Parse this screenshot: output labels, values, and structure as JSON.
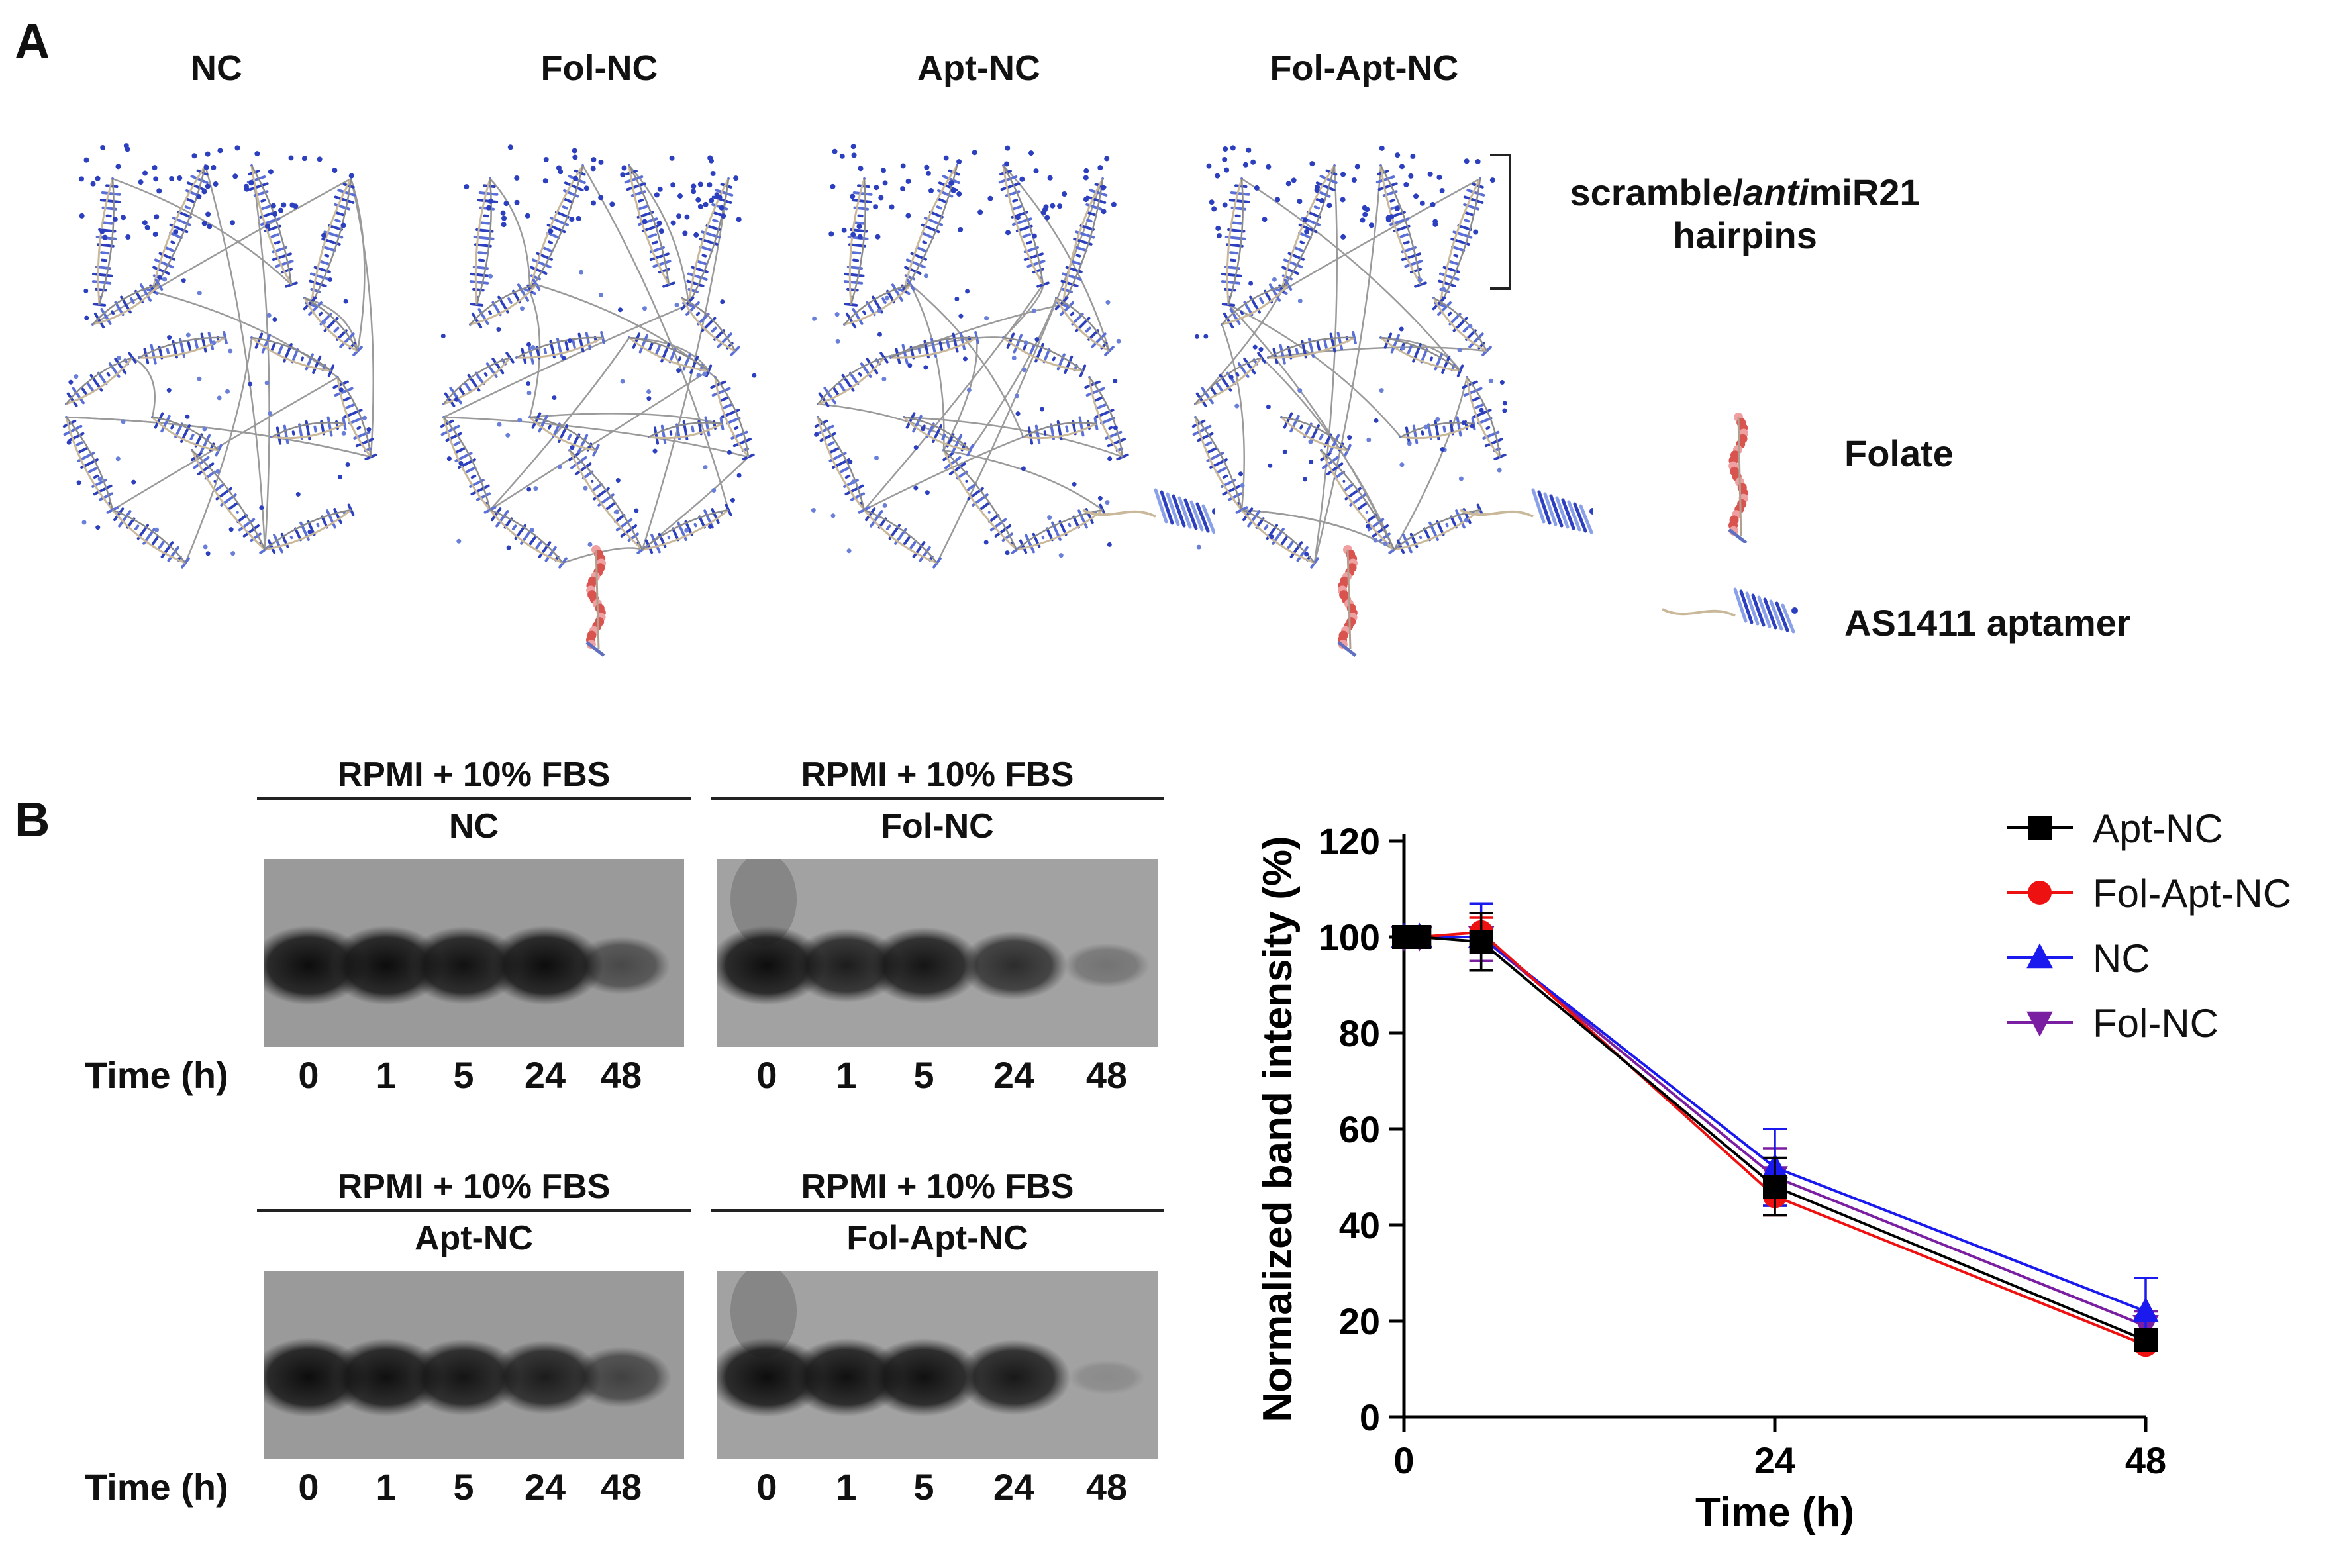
{
  "panel_a": {
    "letter": "A",
    "structures": [
      {
        "title": "NC",
        "folate": false,
        "aptamer": false
      },
      {
        "title": "Fol-NC",
        "folate": true,
        "aptamer": false
      },
      {
        "title": "Apt-NC",
        "folate": false,
        "aptamer": true
      },
      {
        "title": "Fol-Apt-NC",
        "folate": true,
        "aptamer": true
      }
    ],
    "hairpin_label_part1": "scramble/",
    "hairpin_label_italic": "anti",
    "hairpin_label_part2": "miR21",
    "hairpin_label_line2": "hairpins",
    "legend_folate": "Folate",
    "legend_aptamer": "AS1411 aptamer",
    "colors": {
      "dna_blue": "#2b3fbf",
      "backbone": "#c9b99a",
      "folate_red": "#d9534f"
    }
  },
  "panel_b": {
    "letter": "B",
    "gels": [
      {
        "header": "RPMI + 10% FBS",
        "sample": "NC",
        "time_label": "Time (h)",
        "lanes": [
          "0",
          "1",
          "5",
          "24",
          "48"
        ],
        "band_intensity": [
          0.95,
          0.95,
          0.92,
          0.95,
          0.55
        ]
      },
      {
        "header": "RPMI + 10% FBS",
        "sample": "Fol-NC",
        "time_label": "",
        "lanes": [
          "0",
          "1",
          "5",
          "24",
          "48"
        ],
        "band_intensity": [
          0.95,
          0.85,
          0.9,
          0.75,
          0.3
        ]
      },
      {
        "header": "RPMI + 10% FBS",
        "sample": "Apt-NC",
        "time_label": "Time (h)",
        "lanes": [
          "0",
          "1",
          "5",
          "24",
          "48"
        ],
        "band_intensity": [
          0.95,
          0.93,
          0.9,
          0.85,
          0.6
        ]
      },
      {
        "header": "RPMI + 10% FBS",
        "sample": "Fol-Apt-NC",
        "time_label": "",
        "lanes": [
          "0",
          "1",
          "5",
          "24",
          "48"
        ],
        "band_intensity": [
          0.95,
          0.93,
          0.93,
          0.88,
          0.1
        ]
      }
    ]
  },
  "chart_data": {
    "type": "line",
    "xlabel": "Time (h)",
    "ylabel": "Normalized band intensity (%)",
    "xlim": [
      0,
      48
    ],
    "ylim": [
      0,
      120
    ],
    "xticks": [
      "0",
      "24",
      "48"
    ],
    "yticks": [
      "0",
      "20",
      "40",
      "60",
      "80",
      "100",
      "120"
    ],
    "grid": false,
    "legend_placement": "top-right",
    "series": [
      {
        "name": "Apt-NC",
        "color": "#000000",
        "marker": "square",
        "x": [
          0,
          1,
          5,
          24,
          48
        ],
        "y": [
          100,
          100,
          99,
          48,
          16
        ],
        "err": [
          0,
          0,
          6,
          6,
          2
        ]
      },
      {
        "name": "Fol-Apt-NC",
        "color": "#ee1111",
        "marker": "circle",
        "x": [
          0,
          1,
          5,
          24,
          48
        ],
        "y": [
          100,
          100,
          101,
          46,
          15
        ],
        "err": [
          0,
          0,
          3,
          4,
          1
        ]
      },
      {
        "name": "NC",
        "color": "#1a1aee",
        "marker": "triangle-up",
        "x": [
          0,
          1,
          5,
          24,
          48
        ],
        "y": [
          100,
          100,
          100,
          52,
          22
        ],
        "err": [
          0,
          0,
          7,
          8,
          7
        ]
      },
      {
        "name": "Fol-NC",
        "color": "#7b1fa2",
        "marker": "triangle-down",
        "x": [
          0,
          1,
          5,
          24,
          48
        ],
        "y": [
          100,
          100,
          100,
          50,
          19
        ],
        "err": [
          0,
          0,
          5,
          6,
          3
        ]
      }
    ]
  }
}
